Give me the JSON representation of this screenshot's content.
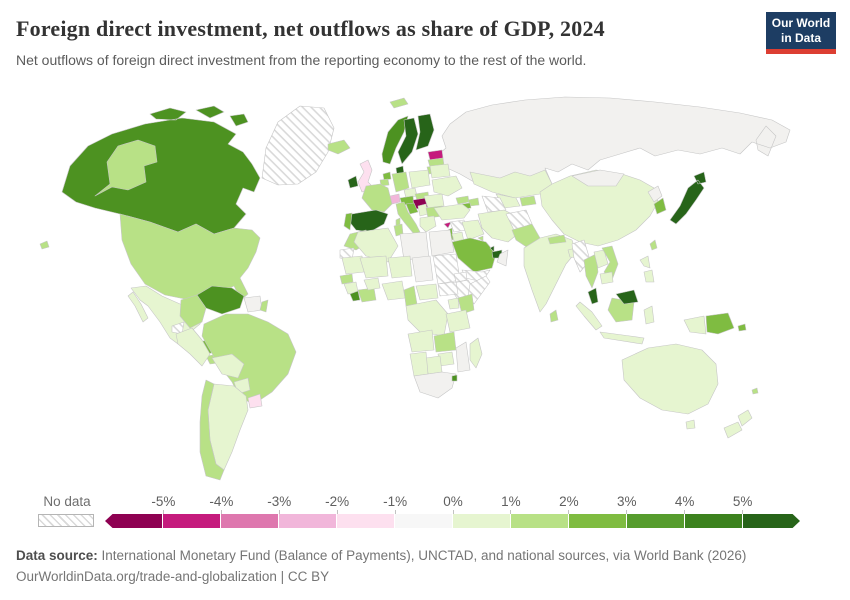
{
  "header": {
    "title": "Foreign direct investment, net outflows as share of GDP, 2024",
    "subtitle": "Net outflows of foreign direct investment from the reporting economy to the rest of the world.",
    "logo": {
      "line1": "Our World",
      "line2": "in Data",
      "bg_color": "#1d3d63",
      "accent_color": "#dc3e32"
    }
  },
  "legend": {
    "no_data_label": "No data",
    "ticks": [
      "-5%",
      "-4%",
      "-3%",
      "-2%",
      "-1%",
      "0%",
      "1%",
      "2%",
      "3%",
      "4%",
      "5%"
    ],
    "bins": [
      {
        "label": "less than -5%",
        "color": "#8E0152"
      },
      {
        "label": "-5% to -4%",
        "color": "#C51B7D"
      },
      {
        "label": "-4% to -3%",
        "color": "#DE77AE"
      },
      {
        "label": "-3% to -2%",
        "color": "#F1B6DA"
      },
      {
        "label": "-2% to -1%",
        "color": "#FDE0EF"
      },
      {
        "label": "-1% to 0%",
        "color": "#F7F7F7"
      },
      {
        "label": "0% to 1%",
        "color": "#E6F5D0"
      },
      {
        "label": "1% to 2%",
        "color": "#B8E186"
      },
      {
        "label": "2% to 3%",
        "color": "#7FBC41"
      },
      {
        "label": "3% to 4%",
        "color": "#569C2D"
      },
      {
        "label": "4% to 5%",
        "color": "#3C821E"
      },
      {
        "label": "more than 5%",
        "color": "#276419"
      }
    ]
  },
  "map": {
    "no_data_fill": "hatch",
    "countries": {
      "greenland": "hatch",
      "canada": "#4D9221",
      "alaska": "#B8E186",
      "usa": "#B8E186",
      "hawaii": "#B8E186",
      "mexico": "#E6F5D0",
      "guatemala": "#E6F5D0",
      "honduras_nicaragua": "#7FBC41",
      "costa_rica_panama": "#B8E186",
      "cuba": "hatch",
      "hispaniola": "#E6F5D0",
      "venezuela": "#4D9221",
      "colombia": "#B8E186",
      "guyana_suriname": "#F2F1EF",
      "french_guiana": "#B8E186",
      "ecuador": "hatch",
      "peru": "#E6F5D0",
      "brazil": "#B8E186",
      "bolivia": "#E6F5D0",
      "paraguay": "#E6F5D0",
      "uruguay": "#FDE0EF",
      "argentina": "#E6F5D0",
      "chile": "#B8E186",
      "iceland": "#B8E186",
      "svalbard": "#B8E186",
      "ireland": "#276419",
      "uk": "#FDE0EF",
      "norway": "#4D9221",
      "sweden": "#276419",
      "finland": "#276419",
      "estonia": "#C51B7D",
      "latvia": "#B8E186",
      "lithuania": "#B8E186",
      "denmark": "#276419",
      "netherlands": "#7FBC41",
      "belgium": "#B8E186",
      "germany": "#B8E186",
      "poland": "#E6F5D0",
      "belarus": "#E6F5D0",
      "ukraine": "#E6F5D0",
      "czechia": "#E6F5D0",
      "slovakia": "#B8E186",
      "austria": "#7FBC41",
      "switzerland": "#F1B6DA",
      "france": "#B8E186",
      "spain": "#276419",
      "portugal": "#7FBC41",
      "italy": "#B8E186",
      "croatia": "#7FBC41",
      "serbia": "#E6F5D0",
      "romania": "#E6F5D0",
      "bulgaria": "#B8E186",
      "greece": "#E6F5D0",
      "russia": "#F2F1EF",
      "kazakhstan": "#E6F5D0",
      "uzbekistan": "#E6F5D0",
      "turkmenistan": "hatch",
      "kyrgyzstan": "#B8E186",
      "georgia": "#B8E186",
      "azerbaijan": "#B8E186",
      "armenia": "#7FBC41",
      "turkey": "#E6F5D0",
      "cyprus": "#C51B7D",
      "syria": "hatch",
      "israel": "#7FBC41",
      "jordan": "#E6F5D0",
      "iraq": "#E6F5D0",
      "iran": "#E6F5D0",
      "saudi_arabia": "#7FBC41",
      "uae": "#276419",
      "qatar": "#276419",
      "kuwait": "#B8E186",
      "oman": "#F2F1EF",
      "yemen": "hatch",
      "afghanistan": "hatch",
      "pakistan": "#B8E186",
      "india": "#E6F5D0",
      "nepal": "#B8E186",
      "bangladesh": "#E6F5D0",
      "sri_lanka": "#B8E186",
      "china": "#E6F5D0",
      "mongolia": "#F2F1EF",
      "north_korea": "#F2F1EF",
      "south_korea": "#7FBC41",
      "japan": "#276419",
      "taiwan": "#B8E186",
      "myanmar": "hatch",
      "thailand": "#B8E186",
      "laos": "#E6F5D0",
      "vietnam": "#B8E186",
      "cambodia": "#E6F5D0",
      "malaysia": "#276419",
      "philippines": "#E6F5D0",
      "indonesia": "#E6F5D0",
      "indonesia_kalimantan": "#B8E186",
      "png": "#7FBC41",
      "solomon": "#7FBC41",
      "australia": "#E6F5D0",
      "new_zealand": "#E6F5D0",
      "fiji": "#B8E186",
      "morocco": "#B8E186",
      "western_sahara": "hatch",
      "algeria": "#E6F5D0",
      "tunisia": "#B8E186",
      "libya": "#F2F1EF",
      "egypt": "#F2F1EF",
      "mauritania": "#E6F5D0",
      "mali": "#E6F5D0",
      "niger": "#E6F5D0",
      "chad": "#F2F1EF",
      "sudan": "hatch",
      "eritrea": "hatch",
      "ethiopia": "hatch",
      "somalia": "hatch",
      "senegal": "#B8E186",
      "guinea": "#E6F5D0",
      "liberia": "#4D9221",
      "ivory_coast_ghana": "#B8E186",
      "burkina": "#E6F5D0",
      "nigeria": "#E6F5D0",
      "cameroon": "#B8E186",
      "car": "#E6F5D0",
      "south_sudan": "hatch",
      "drc": "#E6F5D0",
      "uganda": "#E6F5D0",
      "kenya": "#B8E186",
      "tanzania": "#E6F5D0",
      "angola": "#E6F5D0",
      "zambia": "#B8E186",
      "mozambique": "#F2F1EF",
      "zimbabwe": "#E6F5D0",
      "botswana": "#E6F5D0",
      "namibia": "#E6F5D0",
      "south_africa": "#F2F1EF",
      "eswatini": "#4D9221",
      "madagascar": "#E6F5D0"
    }
  },
  "footer": {
    "source_label": "Data source:",
    "source_text": " International Monetary Fund (Balance of Payments), UNCTAD, and national sources, via World Bank (2026)",
    "link_text": "OurWorldinData.org/trade-and-globalization | CC BY"
  }
}
